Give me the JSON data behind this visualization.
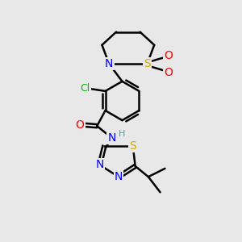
{
  "background_color": "#e8e8e8",
  "bond_color": "#000000",
  "line_width": 1.8,
  "atom_colors": {
    "N": "#0000ff",
    "S": "#ccaa00",
    "O": "#ff0000",
    "Cl": "#00bb00",
    "C": "#000000",
    "H": "#669999"
  },
  "font_size": 9
}
